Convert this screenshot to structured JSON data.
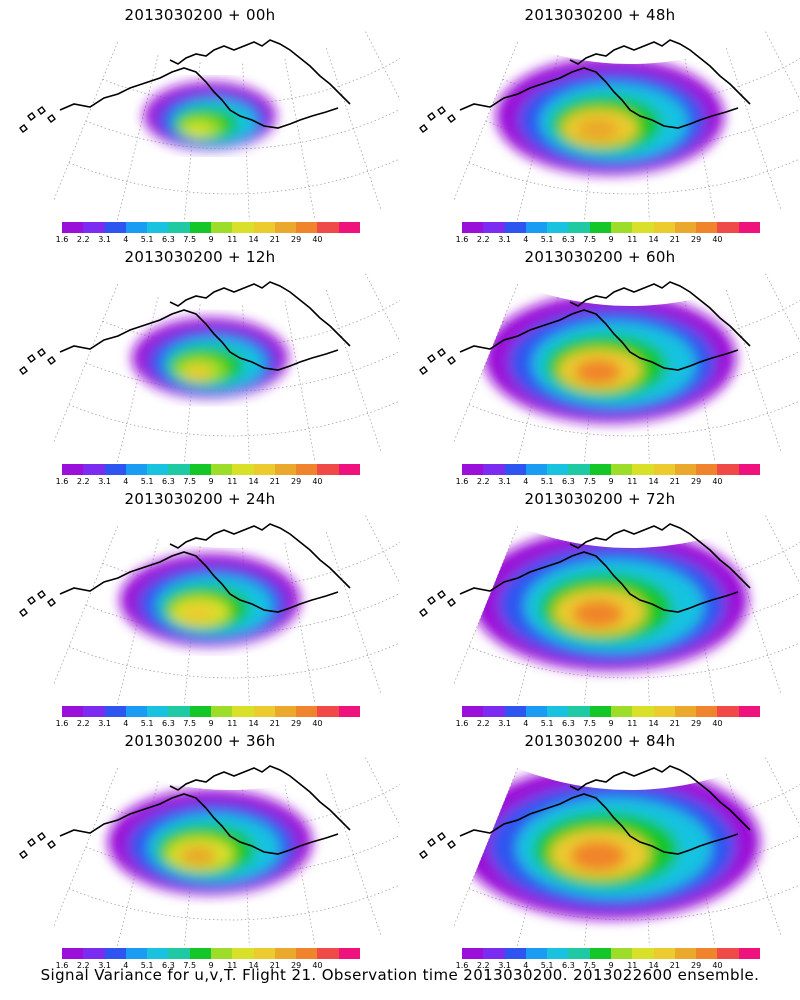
{
  "caption": "Signal Variance for u,v,T. Flight 21. Observation time 2013030200. 2013022600 ensemble.",
  "colorbar": {
    "colors": [
      "#9a10d8",
      "#7b2cf0",
      "#2f55f0",
      "#1a9cf2",
      "#19c3e0",
      "#1ec9a4",
      "#15c628",
      "#9ddd2a",
      "#d8e02a",
      "#eccb2e",
      "#eaa82c",
      "#f0842c",
      "#f04a48",
      "#f0127c"
    ],
    "tick_labels": [
      "1.6",
      "2.2",
      "3.1",
      "4",
      "5.1",
      "6.3",
      "7.5",
      "9",
      "11",
      "14",
      "21",
      "29",
      "40"
    ]
  },
  "panels": [
    {
      "title": "2013030200 + 00h",
      "hour": 0
    },
    {
      "title": "2013030200 + 48h",
      "hour": 48
    },
    {
      "title": "2013030200 + 12h",
      "hour": 12
    },
    {
      "title": "2013030200 + 60h",
      "hour": 60
    },
    {
      "title": "2013030200 + 24h",
      "hour": 24
    },
    {
      "title": "2013030200 + 72h",
      "hour": 72
    },
    {
      "title": "2013030200 + 36h",
      "hour": 36
    },
    {
      "title": "2013030200 + 84h",
      "hour": 84
    }
  ]
}
